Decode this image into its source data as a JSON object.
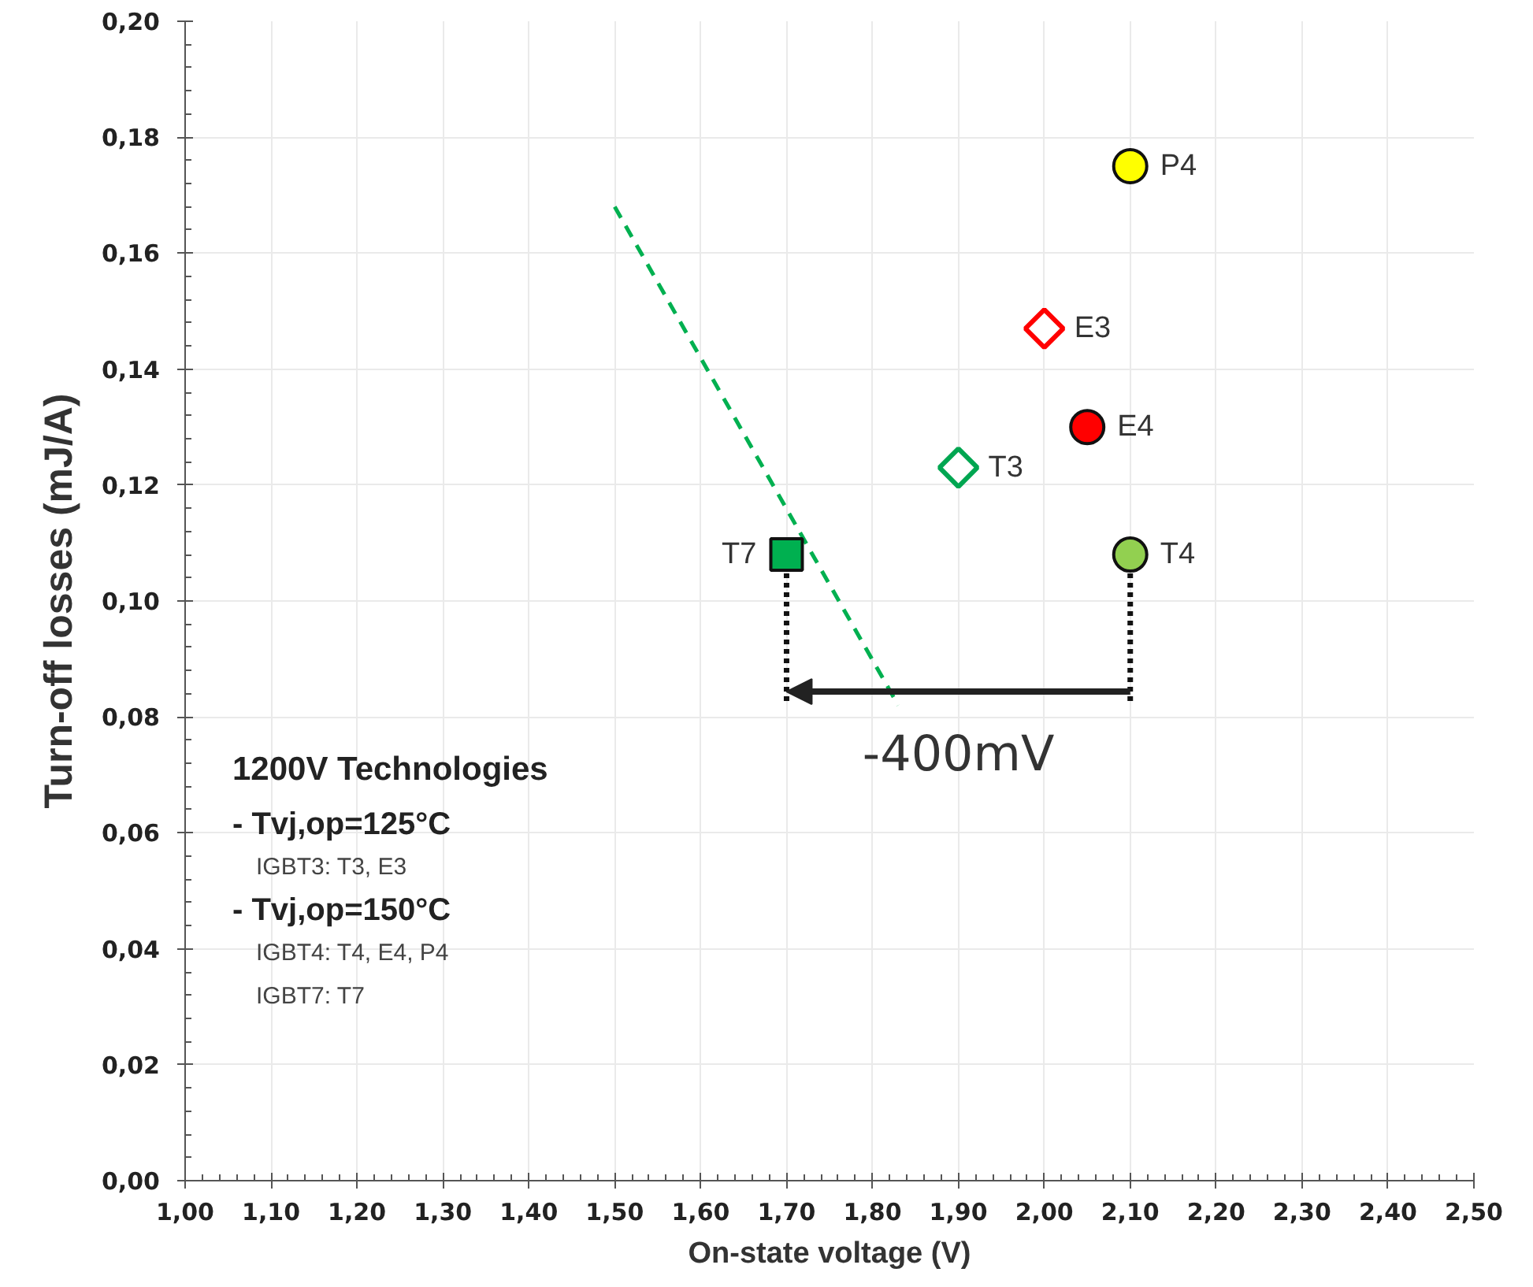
{
  "chart_data": {
    "type": "scatter",
    "xlabel": "On-state voltage (V)",
    "ylabel": "Turn-off losses (mJ/A)",
    "xlim": [
      1.0,
      2.5
    ],
    "ylim": [
      0.0,
      0.2
    ],
    "xticks": [
      {
        "value": 1.0,
        "label": "1,00"
      },
      {
        "value": 1.1,
        "label": "1,10"
      },
      {
        "value": 1.2,
        "label": "1,20"
      },
      {
        "value": 1.3,
        "label": "1,30"
      },
      {
        "value": 1.4,
        "label": "1,40"
      },
      {
        "value": 1.5,
        "label": "1,50"
      },
      {
        "value": 1.6,
        "label": "1,60"
      },
      {
        "value": 1.7,
        "label": "1,70"
      },
      {
        "value": 1.8,
        "label": "1,80"
      },
      {
        "value": 1.9,
        "label": "1,90"
      },
      {
        "value": 2.0,
        "label": "2,00"
      },
      {
        "value": 2.1,
        "label": "2,10"
      },
      {
        "value": 2.2,
        "label": "2,20"
      },
      {
        "value": 2.3,
        "label": "2,30"
      },
      {
        "value": 2.4,
        "label": "2,40"
      },
      {
        "value": 2.5,
        "label": "2,50"
      }
    ],
    "yticks": [
      {
        "value": 0.0,
        "label": "0,00"
      },
      {
        "value": 0.02,
        "label": "0,02"
      },
      {
        "value": 0.04,
        "label": "0,04"
      },
      {
        "value": 0.06,
        "label": "0,06"
      },
      {
        "value": 0.08,
        "label": "0,08"
      },
      {
        "value": 0.1,
        "label": "0,10"
      },
      {
        "value": 0.12,
        "label": "0,12"
      },
      {
        "value": 0.14,
        "label": "0,14"
      },
      {
        "value": 0.16,
        "label": "0,16"
      },
      {
        "value": 0.18,
        "label": "0,18"
      },
      {
        "value": 0.2,
        "label": "0,20"
      }
    ],
    "grid": true,
    "series": [
      {
        "type": "line",
        "color": "#00b050",
        "line_style": "dashed",
        "marker": "none",
        "x": [
          1.5,
          1.83
        ],
        "values": [
          0.168,
          0.082
        ]
      },
      {
        "name": "P4",
        "color": "#ffff00",
        "marker": "circle",
        "x": [
          2.1
        ],
        "values": [
          0.175
        ]
      },
      {
        "name": "E3",
        "color": "#ff0000",
        "marker": "diamond",
        "x": [
          2.0
        ],
        "values": [
          0.147
        ]
      },
      {
        "name": "E4",
        "color": "#ff0000",
        "marker": "circle",
        "x": [
          2.05
        ],
        "values": [
          0.13
        ]
      },
      {
        "name": "T3",
        "color": "#00a651",
        "marker": "diamond",
        "x": [
          1.9
        ],
        "values": [
          0.123
        ]
      },
      {
        "name": "T4",
        "color": "#92d050",
        "marker": "circle",
        "x": [
          2.1
        ],
        "values": [
          0.108
        ]
      },
      {
        "name": "T7",
        "color": "#00b050",
        "marker": "square",
        "x": [
          1.7
        ],
        "values": [
          0.108
        ]
      }
    ],
    "annotations": [
      "-400mV",
      "1200V Technologies",
      "-  Tvj,op=125°C",
      "IGBT3: T3, E3",
      "-  Tvj,op=150°C",
      "IGBT4: T4, E4, P4",
      "IGBT7: T7"
    ]
  }
}
